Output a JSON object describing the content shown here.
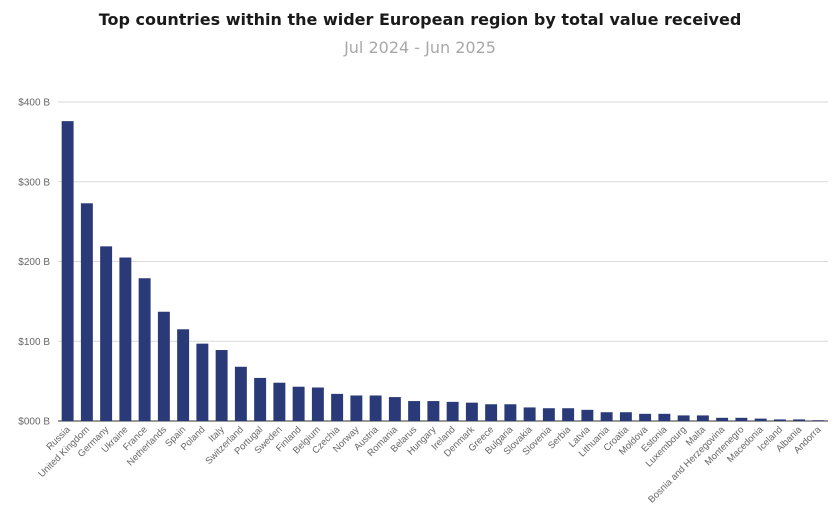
{
  "chart_data": {
    "type": "bar",
    "title": "Top countries within the wider European region by total value received",
    "subtitle": "Jul 2024 - Jun 2025",
    "xlabel": "",
    "ylabel": "",
    "ylim": [
      0,
      400
    ],
    "y_ticks": [
      "$000 B",
      "$100 B",
      "$200 B",
      "$300 B",
      "$400 B"
    ],
    "y_tick_values": [
      0,
      100,
      200,
      300,
      400
    ],
    "grid": true,
    "bar_color": "#2a3a78",
    "grid_color": "#d9d9d9",
    "categories": [
      "Russia",
      "United Kingdom",
      "Germany",
      "Ukraine",
      "France",
      "Netherlands",
      "Spain",
      "Poland",
      "Italy",
      "Switzerland",
      "Portugal",
      "Sweden",
      "Finland",
      "Belgium",
      "Czechia",
      "Norway",
      "Austria",
      "Romania",
      "Belarus",
      "Hungary",
      "Ireland",
      "Denmark",
      "Greece",
      "Bulgaria",
      "Slovakia",
      "Slovenia",
      "Serbia",
      "Latvia",
      "Lithuania",
      "Croatia",
      "Moldova",
      "Estonia",
      "Luxembourg",
      "Malta",
      "Bosnia and Herzegovina",
      "Montenegro",
      "Macedonia",
      "Iceland",
      "Albania",
      "Andorra"
    ],
    "values": [
      376,
      273,
      219,
      205,
      179,
      137,
      115,
      97,
      89,
      68,
      54,
      48,
      43,
      42,
      34,
      32,
      32,
      30,
      25,
      25,
      24,
      23,
      21,
      21,
      17,
      16,
      16,
      14,
      11,
      11,
      9,
      9,
      7,
      7,
      4,
      4,
      3,
      2,
      2,
      1
    ]
  }
}
